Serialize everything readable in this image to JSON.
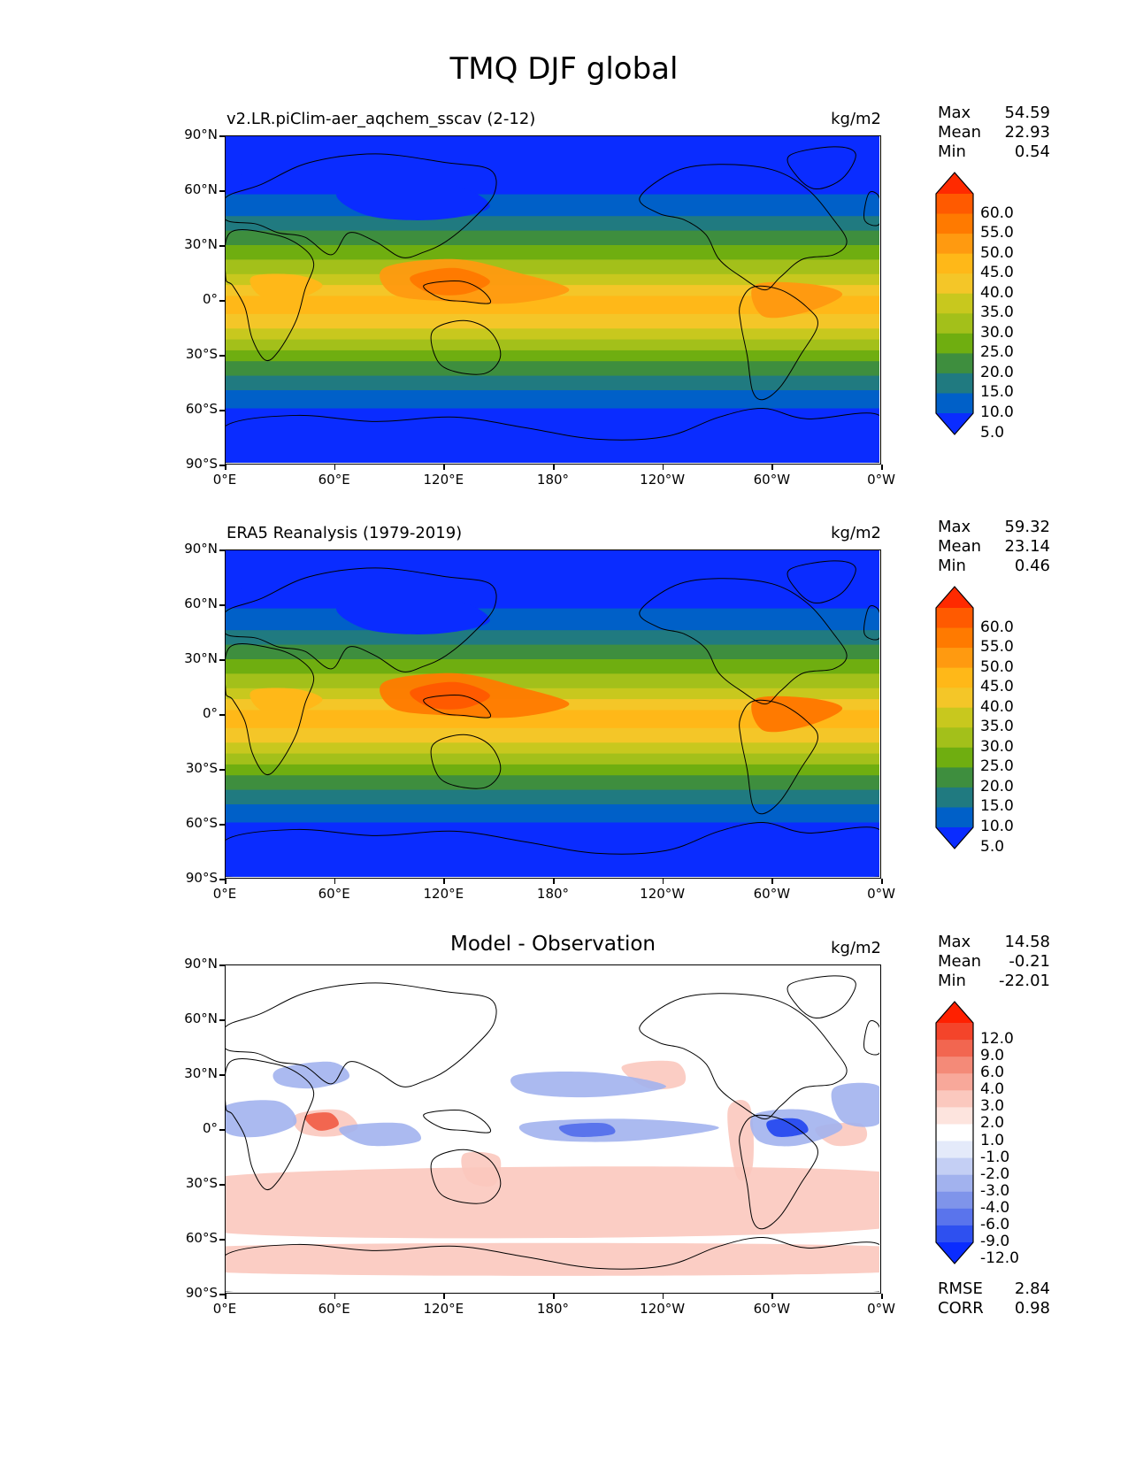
{
  "title": "TMQ DJF global",
  "panels": [
    {
      "id": "model",
      "subtitle_left": "v2.LR.piClim-aer_aqchem_sscav (2-12)",
      "center_title": "",
      "units": "kg/m2",
      "stats": [
        {
          "label": "Max",
          "value": "54.59"
        },
        {
          "label": "Mean",
          "value": "22.93"
        },
        {
          "label": "Min",
          "value": "0.54"
        }
      ],
      "colorbar": {
        "labels": [
          "60.0",
          "55.0",
          "50.0",
          "45.0",
          "40.0",
          "35.0",
          "30.0",
          "25.0",
          "20.0",
          "15.0",
          "10.0",
          "5.0"
        ],
        "colors": [
          "#ff2a00",
          "#ff5a00",
          "#ff7a00",
          "#ff9a10",
          "#ffb818",
          "#f4c628",
          "#c8c81e",
          "#a3c01a",
          "#6fae10",
          "#3e8e3e",
          "#207a80",
          "#0060c8",
          "#0a2cff"
        ]
      },
      "extras": []
    },
    {
      "id": "obs",
      "subtitle_left": "ERA5 Reanalysis (1979-2019)",
      "center_title": "",
      "units": "kg/m2",
      "stats": [
        {
          "label": "Max",
          "value": "59.32"
        },
        {
          "label": "Mean",
          "value": "23.14"
        },
        {
          "label": "Min",
          "value": "0.46"
        }
      ],
      "colorbar": {
        "labels": [
          "60.0",
          "55.0",
          "50.0",
          "45.0",
          "40.0",
          "35.0",
          "30.0",
          "25.0",
          "20.0",
          "15.0",
          "10.0",
          "5.0"
        ],
        "colors": [
          "#ff2a00",
          "#ff5a00",
          "#ff7a00",
          "#ff9a10",
          "#ffb818",
          "#f4c628",
          "#c8c81e",
          "#a3c01a",
          "#6fae10",
          "#3e8e3e",
          "#207a80",
          "#0060c8",
          "#0a2cff"
        ]
      },
      "extras": []
    },
    {
      "id": "diff",
      "subtitle_left": "",
      "center_title": "Model - Observation",
      "units": "kg/m2",
      "stats": [
        {
          "label": "Max",
          "value": "14.58"
        },
        {
          "label": "Mean",
          "value": "-0.21"
        },
        {
          "label": "Min",
          "value": "-22.01"
        }
      ],
      "colorbar": {
        "labels": [
          "12.0",
          "9.0",
          "6.0",
          "4.0",
          "3.0",
          "2.0",
          "1.0",
          "-1.0",
          "-2.0",
          "-3.0",
          "-4.0",
          "-6.0",
          "-9.0",
          "-12.0"
        ],
        "colors": [
          "#ff2000",
          "#f4442a",
          "#f26650",
          "#f48a78",
          "#f8a89a",
          "#fbc8be",
          "#fde4de",
          "#ffffff",
          "#e4eafa",
          "#c4cff4",
          "#a2b2ee",
          "#7f94ea",
          "#5a74ec",
          "#2e50f0",
          "#0a2cff"
        ]
      },
      "extras": [
        {
          "label": "RMSE",
          "value": "2.84"
        },
        {
          "label": "CORR",
          "value": "0.98"
        }
      ]
    }
  ],
  "y_ticks": [
    "90°N",
    "60°N",
    "30°N",
    "0°",
    "30°S",
    "60°S",
    "90°S"
  ],
  "x_ticks": [
    "0°E",
    "60°E",
    "120°E",
    "180°",
    "120°W",
    "60°W",
    "0°W"
  ],
  "chart_data": [
    {
      "type": "heatmap",
      "title": "TMQ DJF global",
      "subtitle": "v2.LR.piClim-aer_aqchem_sscav (2-12)",
      "units": "kg/m2",
      "x_ticks": [
        "0°E",
        "60°E",
        "120°E",
        "180°",
        "120°W",
        "60°W",
        "0°W"
      ],
      "y_ticks": [
        "90°N",
        "60°N",
        "30°N",
        "0°",
        "30°S",
        "60°S",
        "90°S"
      ],
      "xlim": [
        0,
        360
      ],
      "ylim": [
        -90,
        90
      ],
      "levels": [
        5,
        10,
        15,
        20,
        25,
        30,
        35,
        40,
        45,
        50,
        55,
        60
      ],
      "stats": {
        "max": 54.59,
        "mean": 22.93,
        "min": 0.54
      }
    },
    {
      "type": "heatmap",
      "subtitle": "ERA5 Reanalysis (1979-2019)",
      "units": "kg/m2",
      "x_ticks": [
        "0°E",
        "60°E",
        "120°E",
        "180°",
        "120°W",
        "60°W",
        "0°W"
      ],
      "y_ticks": [
        "90°N",
        "60°N",
        "30°N",
        "0°",
        "30°S",
        "60°S",
        "90°S"
      ],
      "xlim": [
        0,
        360
      ],
      "ylim": [
        -90,
        90
      ],
      "levels": [
        5,
        10,
        15,
        20,
        25,
        30,
        35,
        40,
        45,
        50,
        55,
        60
      ],
      "stats": {
        "max": 59.32,
        "mean": 23.14,
        "min": 0.46
      }
    },
    {
      "type": "heatmap",
      "title": "Model - Observation",
      "units": "kg/m2",
      "x_ticks": [
        "0°E",
        "60°E",
        "120°E",
        "180°",
        "120°W",
        "60°W",
        "0°W"
      ],
      "y_ticks": [
        "90°N",
        "60°N",
        "30°N",
        "0°",
        "30°S",
        "60°S",
        "90°S"
      ],
      "xlim": [
        0,
        360
      ],
      "ylim": [
        -90,
        90
      ],
      "levels": [
        -12,
        -9,
        -6,
        -4,
        -3,
        -2,
        -1,
        1,
        2,
        3,
        4,
        6,
        9,
        12
      ],
      "stats": {
        "max": 14.58,
        "mean": -0.21,
        "min": -22.01,
        "rmse": 2.84,
        "corr": 0.98
      }
    }
  ]
}
